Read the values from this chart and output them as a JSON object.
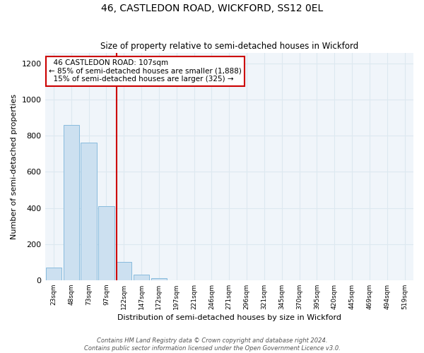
{
  "title": "46, CASTLEDON ROAD, WICKFORD, SS12 0EL",
  "subtitle": "Size of property relative to semi-detached houses in Wickford",
  "xlabel": "Distribution of semi-detached houses by size in Wickford",
  "ylabel": "Number of semi-detached properties",
  "footer_line1": "Contains HM Land Registry data © Crown copyright and database right 2024.",
  "footer_line2": "Contains public sector information licensed under the Open Government Licence v3.0.",
  "bar_labels": [
    "23sqm",
    "48sqm",
    "73sqm",
    "97sqm",
    "122sqm",
    "147sqm",
    "172sqm",
    "197sqm",
    "221sqm",
    "246sqm",
    "271sqm",
    "296sqm",
    "321sqm",
    "345sqm",
    "370sqm",
    "395sqm",
    "420sqm",
    "445sqm",
    "469sqm",
    "494sqm",
    "519sqm"
  ],
  "bar_values": [
    70,
    860,
    760,
    410,
    100,
    30,
    10,
    0,
    0,
    0,
    0,
    0,
    0,
    0,
    0,
    0,
    0,
    0,
    0,
    0,
    0
  ],
  "bar_color": "#cce0f0",
  "bar_edge_color": "#88bbdd",
  "vline_color": "#cc0000",
  "vline_pos": 3.58,
  "ylim": [
    0,
    1260
  ],
  "yticks": [
    0,
    200,
    400,
    600,
    800,
    1000,
    1200
  ],
  "annotation_title": "46 CASTLEDON ROAD: 107sqm",
  "annotation_line1": "← 85% of semi-detached houses are smaller (1,888)",
  "annotation_line2": "15% of semi-detached houses are larger (325) →",
  "annotation_box_color": "#ffffff",
  "annotation_box_edge": "#cc0000",
  "grid_color": "#dde8f0",
  "bg_color": "#ffffff",
  "plot_bg_color": "#f0f5fa"
}
